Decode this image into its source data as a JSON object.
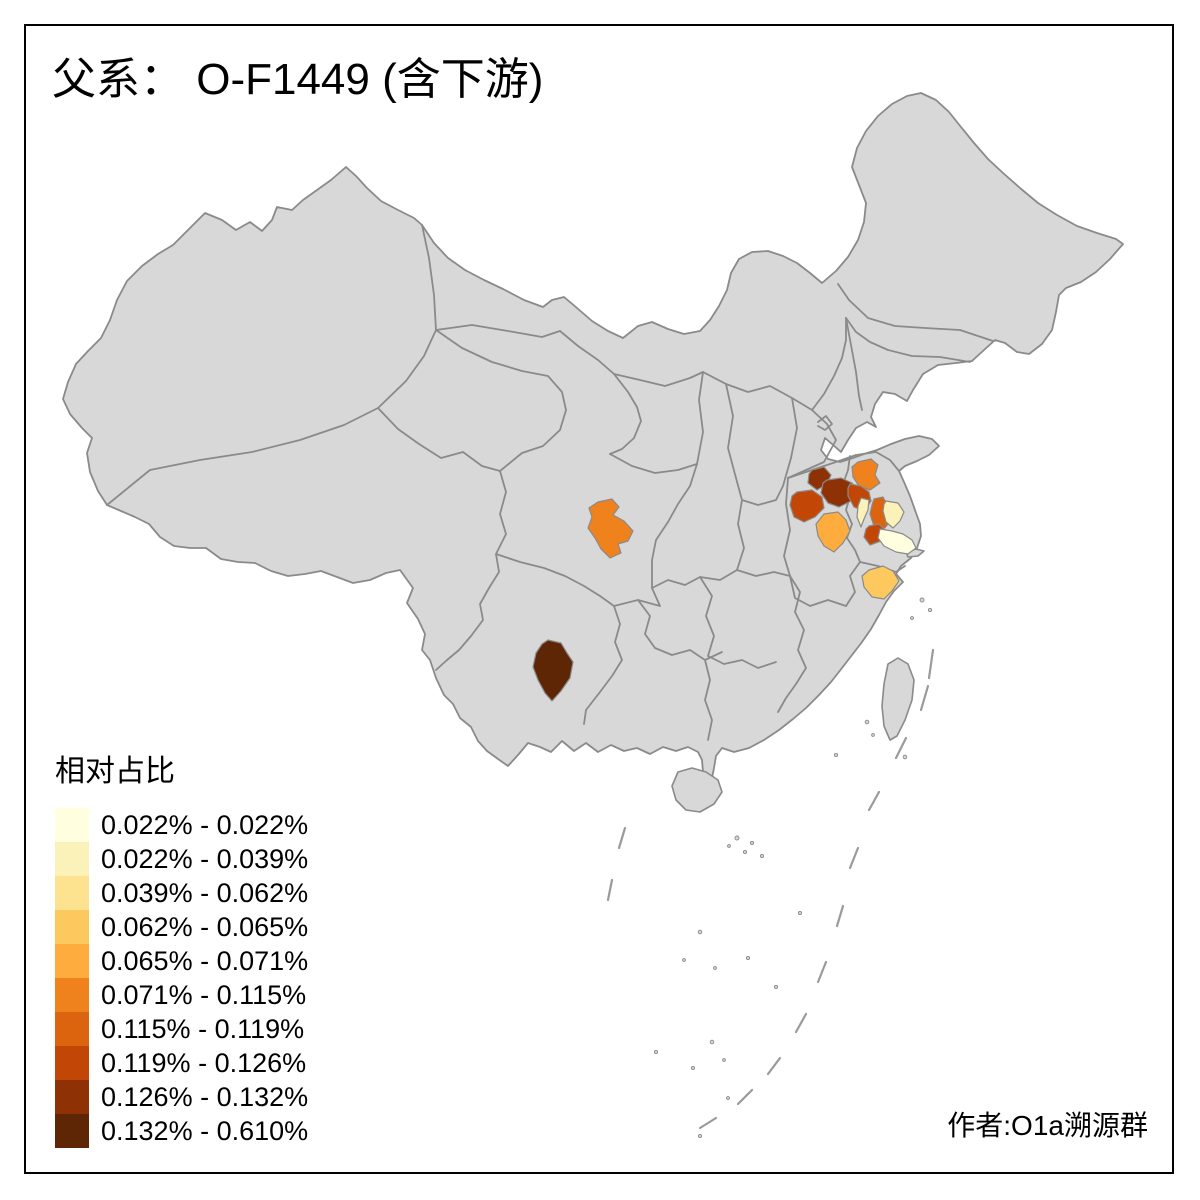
{
  "title": "父系： O-F1449 (含下游)",
  "attribution": "作者:O1a溯源群",
  "legend": {
    "title": "相对占比",
    "classes": [
      {
        "label": "0.022% - 0.022%",
        "color": "#FFFFDF"
      },
      {
        "label": "0.022% - 0.039%",
        "color": "#FAF2B8"
      },
      {
        "label": "0.039% - 0.062%",
        "color": "#FDE290"
      },
      {
        "label": "0.062% - 0.065%",
        "color": "#FDC95F"
      },
      {
        "label": "0.065% - 0.071%",
        "color": "#FDAC3D"
      },
      {
        "label": "0.071% - 0.115%",
        "color": "#F0821E"
      },
      {
        "label": "0.115% - 0.119%",
        "color": "#DC640E"
      },
      {
        "label": "0.119% - 0.126%",
        "color": "#C24706"
      },
      {
        "label": "0.126% - 0.132%",
        "color": "#8E3104"
      },
      {
        "label": "0.132% - 0.610%",
        "color": "#5E2605"
      }
    ]
  },
  "map": {
    "background": "#FFFFFF",
    "base_fill": "#D8D8D8",
    "border_color": "#8A8A8A",
    "frame_color": "#000000",
    "regions": [
      {
        "id": "sichuan-basin",
        "class_index": 5
      },
      {
        "id": "central-yunnan",
        "class_index": 9
      },
      {
        "id": "north-jiangsu-orange",
        "class_index": 5
      },
      {
        "id": "north-anhui-small",
        "class_index": 8
      },
      {
        "id": "east-anhui-large",
        "class_index": 8
      },
      {
        "id": "central-anhui-west",
        "class_index": 7
      },
      {
        "id": "west-jiangsu-red",
        "class_index": 7
      },
      {
        "id": "mid-jiangsu-strip",
        "class_index": 6
      },
      {
        "id": "south-jiangsu-red",
        "class_index": 7
      },
      {
        "id": "central-anhui-south",
        "class_index": 4
      },
      {
        "id": "mid-jiangsu-pale-left",
        "class_index": 1
      },
      {
        "id": "east-jiangsu-pale",
        "class_index": 1
      },
      {
        "id": "coastal-jiangsu-cream",
        "class_index": 0
      },
      {
        "id": "north-zhejiang-patch",
        "class_index": 3
      }
    ]
  }
}
